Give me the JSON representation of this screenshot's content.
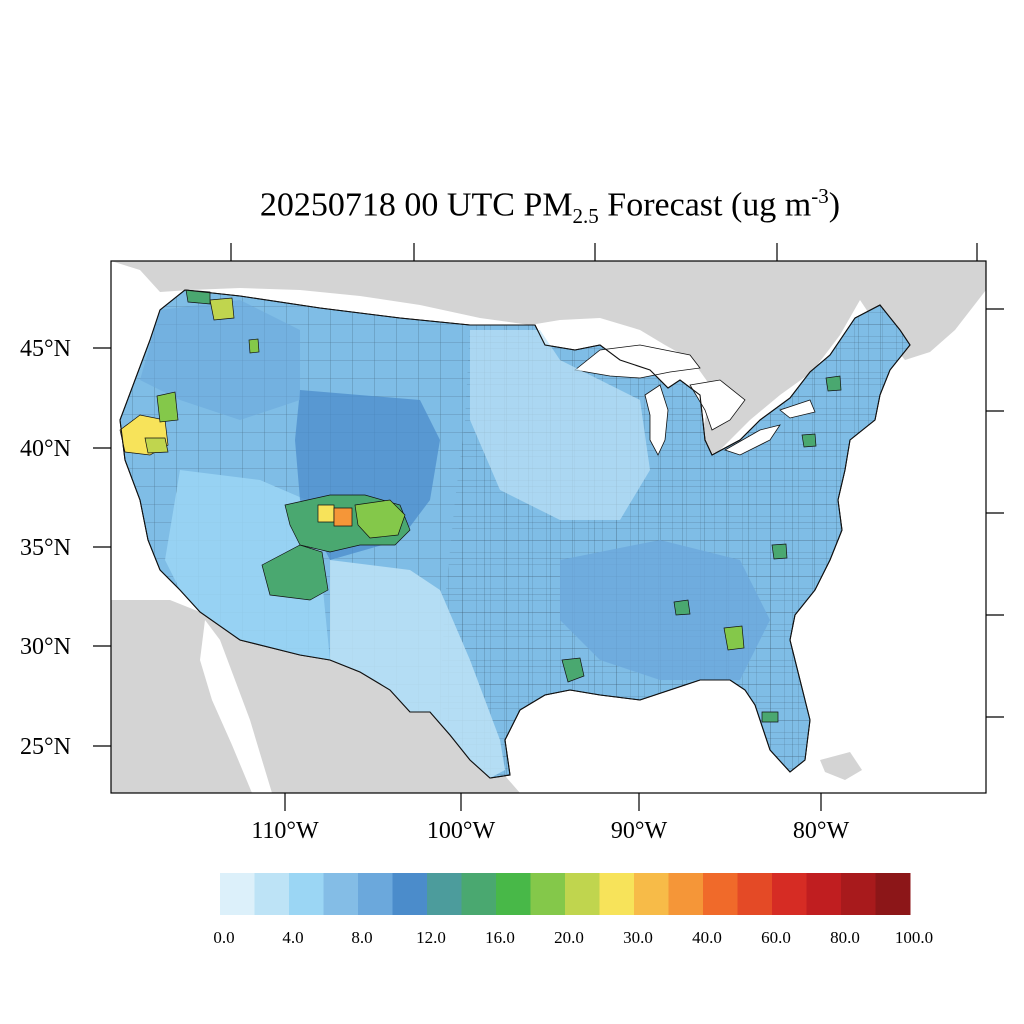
{
  "title": {
    "prefix": "20250718 00 UTC PM",
    "sub": "2.5",
    "mid": " Forecast (ug m",
    "sup": "-3",
    "suffix": ")"
  },
  "map": {
    "lat_labels": [
      "45°N",
      "40°N",
      "35°N",
      "30°N",
      "25°N"
    ],
    "lon_labels": [
      "110°W",
      "100°W",
      "90°W",
      "80°W"
    ],
    "land_color": "#d4d4d4",
    "water_color": "#ffffff",
    "border_color": "#222222"
  },
  "colorbar": {
    "colors": [
      "#dcf0fa",
      "#bde3f6",
      "#9bd6f4",
      "#84bde6",
      "#6ba8dc",
      "#4b8ccb",
      "#4c9c9c",
      "#4aa870",
      "#48b848",
      "#84c84a",
      "#c0d54e",
      "#f7e35a",
      "#f7bb48",
      "#f59638",
      "#f06a2a",
      "#e44a26",
      "#d62c24",
      "#c01e20",
      "#a81a1c",
      "#8c1618"
    ],
    "labels": [
      "0.0",
      "4.0",
      "8.0",
      "12.0",
      "16.0",
      "20.0",
      "30.0",
      "40.0",
      "60.0",
      "80.0",
      "100.0"
    ]
  },
  "hotspots": {
    "colors": {
      "green": "#4aa870",
      "lime": "#84c84a",
      "yellowgreen": "#c0d54e",
      "yellow": "#f7e35a",
      "orange": "#f59638",
      "teal": "#4c9c9c"
    }
  }
}
